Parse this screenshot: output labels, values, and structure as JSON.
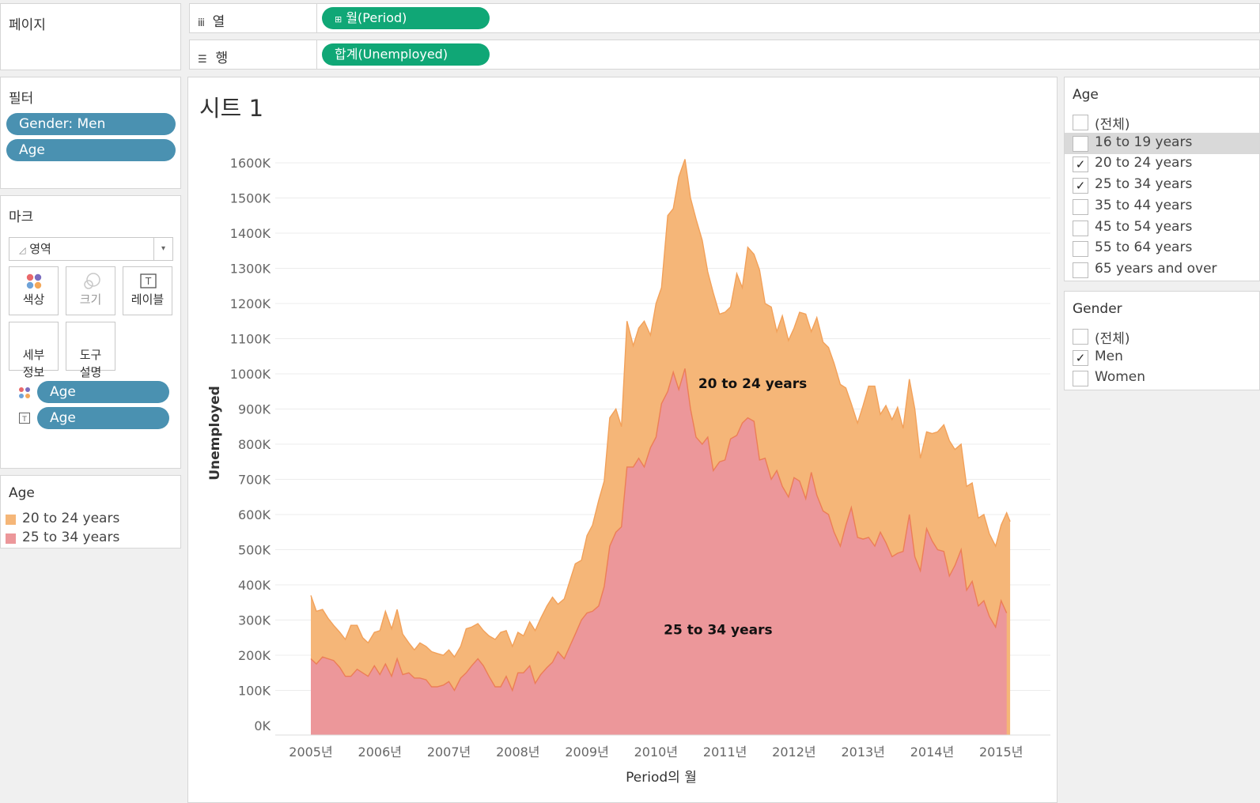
{
  "pages_shelf": {
    "title": "페이지"
  },
  "columns_shelf": {
    "icon": "columns-icon",
    "label": "열",
    "pill": "월(Period)",
    "pill_icon": "expand-icon"
  },
  "rows_shelf": {
    "icon": "rows-icon",
    "label": "행",
    "pill": "합계(Unemployed)"
  },
  "filters": {
    "title": "필터",
    "pills": [
      "Gender: Men",
      "Age"
    ]
  },
  "marks": {
    "title": "마크",
    "type_label": "영역",
    "buttons": [
      {
        "label": "색상",
        "icon": "color-icon"
      },
      {
        "label": "크기",
        "icon": "size-icon"
      },
      {
        "label": "레이블",
        "icon": "label-icon"
      },
      {
        "label": "세부\n정보",
        "icon": "detail-icon"
      },
      {
        "label": "도구\n설명",
        "icon": "tooltip-icon"
      }
    ],
    "fields": [
      {
        "icon": "color-dots-icon",
        "label": "Age"
      },
      {
        "icon": "label-t-icon",
        "label": "Age"
      }
    ]
  },
  "legend": {
    "title": "Age",
    "items": [
      {
        "label": "20 to 24 years",
        "color": "#f5b678"
      },
      {
        "label": "25 to 34 years",
        "color": "#ec979a"
      }
    ]
  },
  "age_filter": {
    "title": "Age",
    "items": [
      {
        "label": "(전체)",
        "checked": false
      },
      {
        "label": "16 to 19 years",
        "checked": false,
        "highlighted": true
      },
      {
        "label": "20 to 24 years",
        "checked": true
      },
      {
        "label": "25 to 34 years",
        "checked": true
      },
      {
        "label": "35 to 44 years",
        "checked": false
      },
      {
        "label": "45 to 54 years",
        "checked": false
      },
      {
        "label": "55 to 64 years",
        "checked": false
      },
      {
        "label": "65 years and over",
        "checked": false
      }
    ]
  },
  "gender_filter": {
    "title": "Gender",
    "items": [
      {
        "label": "(전체)",
        "checked": false
      },
      {
        "label": "Men",
        "checked": true
      },
      {
        "label": "Women",
        "checked": false
      }
    ]
  },
  "sheet": {
    "title": "시트 1"
  },
  "chart_data": {
    "type": "area",
    "stacked": true,
    "xlabel": "Period의 월",
    "ylabel": "Unemployed",
    "x_ticks": [
      "2005년",
      "2006년",
      "2007년",
      "2008년",
      "2009년",
      "2010년",
      "2011년",
      "2012년",
      "2013년",
      "2014년",
      "2015년"
    ],
    "y_ticks": [
      "0K",
      "100K",
      "200K",
      "300K",
      "400K",
      "500K",
      "600K",
      "700K",
      "800K",
      "900K",
      "1000K",
      "1100K",
      "1200K",
      "1300K",
      "1400K",
      "1500K",
      "1600K"
    ],
    "ylim": [
      0,
      1600
    ],
    "x_range": [
      2005.0,
      2015.0833
    ],
    "grid": "horizontal",
    "series": [
      {
        "name": "25 to 34 years",
        "color": "#ec979a",
        "line_color": "#ec7e56",
        "label": "25 to 34 years",
        "label_at": [
          2010.9,
          260
        ],
        "points": [
          [
            2005.0,
            190
          ],
          [
            2005.08,
            175
          ],
          [
            2005.17,
            195
          ],
          [
            2005.25,
            190
          ],
          [
            2005.33,
            185
          ],
          [
            2005.42,
            165
          ],
          [
            2005.5,
            140
          ],
          [
            2005.58,
            140
          ],
          [
            2005.67,
            160
          ],
          [
            2005.75,
            150
          ],
          [
            2005.83,
            140
          ],
          [
            2005.92,
            170
          ],
          [
            2006.0,
            145
          ],
          [
            2006.08,
            175
          ],
          [
            2006.17,
            140
          ],
          [
            2006.25,
            190
          ],
          [
            2006.33,
            145
          ],
          [
            2006.42,
            150
          ],
          [
            2006.5,
            135
          ],
          [
            2006.58,
            135
          ],
          [
            2006.67,
            130
          ],
          [
            2006.75,
            110
          ],
          [
            2006.83,
            110
          ],
          [
            2006.92,
            115
          ],
          [
            2007.0,
            125
          ],
          [
            2007.08,
            100
          ],
          [
            2007.17,
            135
          ],
          [
            2007.25,
            150
          ],
          [
            2007.33,
            170
          ],
          [
            2007.42,
            190
          ],
          [
            2007.5,
            170
          ],
          [
            2007.58,
            140
          ],
          [
            2007.67,
            110
          ],
          [
            2007.75,
            110
          ],
          [
            2007.83,
            140
          ],
          [
            2007.92,
            100
          ],
          [
            2008.0,
            150
          ],
          [
            2008.08,
            150
          ],
          [
            2008.17,
            170
          ],
          [
            2008.25,
            120
          ],
          [
            2008.33,
            145
          ],
          [
            2008.42,
            165
          ],
          [
            2008.5,
            180
          ],
          [
            2008.58,
            210
          ],
          [
            2008.67,
            190
          ],
          [
            2008.75,
            225
          ],
          [
            2008.83,
            260
          ],
          [
            2008.92,
            300
          ],
          [
            2009.0,
            320
          ],
          [
            2009.08,
            325
          ],
          [
            2009.17,
            340
          ],
          [
            2009.25,
            395
          ],
          [
            2009.33,
            510
          ],
          [
            2009.42,
            550
          ],
          [
            2009.5,
            565
          ],
          [
            2009.58,
            735
          ],
          [
            2009.67,
            735
          ],
          [
            2009.75,
            760
          ],
          [
            2009.83,
            735
          ],
          [
            2009.92,
            790
          ],
          [
            2010.0,
            820
          ],
          [
            2010.08,
            915
          ],
          [
            2010.17,
            950
          ],
          [
            2010.25,
            1005
          ],
          [
            2010.33,
            955
          ],
          [
            2010.42,
            1015
          ],
          [
            2010.5,
            900
          ],
          [
            2010.58,
            820
          ],
          [
            2010.67,
            800
          ],
          [
            2010.75,
            820
          ],
          [
            2010.83,
            725
          ],
          [
            2010.92,
            750
          ],
          [
            2011.0,
            755
          ],
          [
            2011.08,
            815
          ],
          [
            2011.17,
            825
          ],
          [
            2011.25,
            860
          ],
          [
            2011.33,
            875
          ],
          [
            2011.42,
            865
          ],
          [
            2011.5,
            755
          ],
          [
            2011.58,
            760
          ],
          [
            2011.67,
            700
          ],
          [
            2011.75,
            725
          ],
          [
            2011.83,
            680
          ],
          [
            2011.92,
            650
          ],
          [
            2012.0,
            705
          ],
          [
            2012.08,
            695
          ],
          [
            2012.17,
            645
          ],
          [
            2012.25,
            720
          ],
          [
            2012.33,
            655
          ],
          [
            2012.42,
            610
          ],
          [
            2012.5,
            600
          ],
          [
            2012.58,
            550
          ],
          [
            2012.67,
            510
          ],
          [
            2012.75,
            570
          ],
          [
            2012.83,
            620
          ],
          [
            2012.92,
            535
          ],
          [
            2013.0,
            530
          ],
          [
            2013.08,
            535
          ],
          [
            2013.17,
            510
          ],
          [
            2013.25,
            550
          ],
          [
            2013.33,
            520
          ],
          [
            2013.42,
            480
          ],
          [
            2013.5,
            490
          ],
          [
            2013.58,
            495
          ],
          [
            2013.67,
            600
          ],
          [
            2013.75,
            480
          ],
          [
            2013.83,
            440
          ],
          [
            2013.92,
            560
          ],
          [
            2014.0,
            525
          ],
          [
            2014.08,
            500
          ],
          [
            2014.17,
            495
          ],
          [
            2014.25,
            425
          ],
          [
            2014.33,
            455
          ],
          [
            2014.42,
            500
          ],
          [
            2014.5,
            385
          ],
          [
            2014.58,
            410
          ],
          [
            2014.67,
            340
          ],
          [
            2014.75,
            355
          ],
          [
            2014.83,
            310
          ],
          [
            2014.92,
            280
          ],
          [
            2015.0,
            355
          ],
          [
            2015.08,
            320
          ]
        ]
      },
      {
        "name": "20 to 24 years",
        "color": "#f5b678",
        "line_color": "#f2a15a",
        "label": "20 to 24 years",
        "label_at": [
          2011.4,
          960
        ],
        "points": [
          [
            2005.0,
            370
          ],
          [
            2005.08,
            325
          ],
          [
            2005.17,
            330
          ],
          [
            2005.25,
            305
          ],
          [
            2005.33,
            285
          ],
          [
            2005.42,
            265
          ],
          [
            2005.5,
            245
          ],
          [
            2005.58,
            285
          ],
          [
            2005.67,
            285
          ],
          [
            2005.75,
            250
          ],
          [
            2005.83,
            235
          ],
          [
            2005.92,
            265
          ],
          [
            2006.0,
            270
          ],
          [
            2006.08,
            325
          ],
          [
            2006.17,
            275
          ],
          [
            2006.25,
            330
          ],
          [
            2006.33,
            260
          ],
          [
            2006.42,
            235
          ],
          [
            2006.5,
            215
          ],
          [
            2006.58,
            235
          ],
          [
            2006.67,
            225
          ],
          [
            2006.75,
            210
          ],
          [
            2006.83,
            205
          ],
          [
            2006.92,
            200
          ],
          [
            2007.0,
            215
          ],
          [
            2007.08,
            195
          ],
          [
            2007.17,
            225
          ],
          [
            2007.25,
            275
          ],
          [
            2007.33,
            280
          ],
          [
            2007.42,
            290
          ],
          [
            2007.5,
            270
          ],
          [
            2007.58,
            255
          ],
          [
            2007.67,
            245
          ],
          [
            2007.75,
            265
          ],
          [
            2007.83,
            270
          ],
          [
            2007.92,
            225
          ],
          [
            2008.0,
            265
          ],
          [
            2008.08,
            255
          ],
          [
            2008.17,
            295
          ],
          [
            2008.25,
            270
          ],
          [
            2008.33,
            305
          ],
          [
            2008.42,
            340
          ],
          [
            2008.5,
            365
          ],
          [
            2008.58,
            345
          ],
          [
            2008.67,
            360
          ],
          [
            2008.75,
            410
          ],
          [
            2008.83,
            460
          ],
          [
            2008.92,
            470
          ],
          [
            2009.0,
            540
          ],
          [
            2009.08,
            570
          ],
          [
            2009.17,
            640
          ],
          [
            2009.25,
            695
          ],
          [
            2009.33,
            875
          ],
          [
            2009.42,
            900
          ],
          [
            2009.5,
            850
          ],
          [
            2009.58,
            1150
          ],
          [
            2009.67,
            1080
          ],
          [
            2009.75,
            1130
          ],
          [
            2009.83,
            1150
          ],
          [
            2009.92,
            1110
          ],
          [
            2010.0,
            1200
          ],
          [
            2010.08,
            1245
          ],
          [
            2010.17,
            1450
          ],
          [
            2010.25,
            1470
          ],
          [
            2010.33,
            1560
          ],
          [
            2010.42,
            1610
          ],
          [
            2010.5,
            1500
          ],
          [
            2010.58,
            1440
          ],
          [
            2010.67,
            1380
          ],
          [
            2010.75,
            1290
          ],
          [
            2010.83,
            1230
          ],
          [
            2010.92,
            1170
          ],
          [
            2011.0,
            1175
          ],
          [
            2011.08,
            1190
          ],
          [
            2011.17,
            1285
          ],
          [
            2011.25,
            1245
          ],
          [
            2011.33,
            1360
          ],
          [
            2011.42,
            1340
          ],
          [
            2011.5,
            1295
          ],
          [
            2011.58,
            1200
          ],
          [
            2011.67,
            1190
          ],
          [
            2011.75,
            1120
          ],
          [
            2011.83,
            1165
          ],
          [
            2011.92,
            1095
          ],
          [
            2012.0,
            1130
          ],
          [
            2012.08,
            1175
          ],
          [
            2012.17,
            1170
          ],
          [
            2012.25,
            1120
          ],
          [
            2012.33,
            1160
          ],
          [
            2012.42,
            1090
          ],
          [
            2012.5,
            1075
          ],
          [
            2012.58,
            1030
          ],
          [
            2012.67,
            970
          ],
          [
            2012.75,
            960
          ],
          [
            2012.83,
            915
          ],
          [
            2012.92,
            860
          ],
          [
            2013.0,
            910
          ],
          [
            2013.08,
            965
          ],
          [
            2013.17,
            965
          ],
          [
            2013.25,
            885
          ],
          [
            2013.33,
            910
          ],
          [
            2013.42,
            870
          ],
          [
            2013.5,
            905
          ],
          [
            2013.58,
            845
          ],
          [
            2013.67,
            985
          ],
          [
            2013.75,
            900
          ],
          [
            2013.83,
            760
          ],
          [
            2013.92,
            835
          ],
          [
            2014.0,
            830
          ],
          [
            2014.08,
            835
          ],
          [
            2014.17,
            855
          ],
          [
            2014.25,
            810
          ],
          [
            2014.33,
            785
          ],
          [
            2014.42,
            800
          ],
          [
            2014.5,
            680
          ],
          [
            2014.58,
            690
          ],
          [
            2014.67,
            590
          ],
          [
            2014.75,
            600
          ],
          [
            2014.83,
            545
          ],
          [
            2014.92,
            510
          ],
          [
            2015.0,
            570
          ],
          [
            2015.08,
            605
          ],
          [
            2015.13,
            580
          ]
        ]
      }
    ]
  }
}
